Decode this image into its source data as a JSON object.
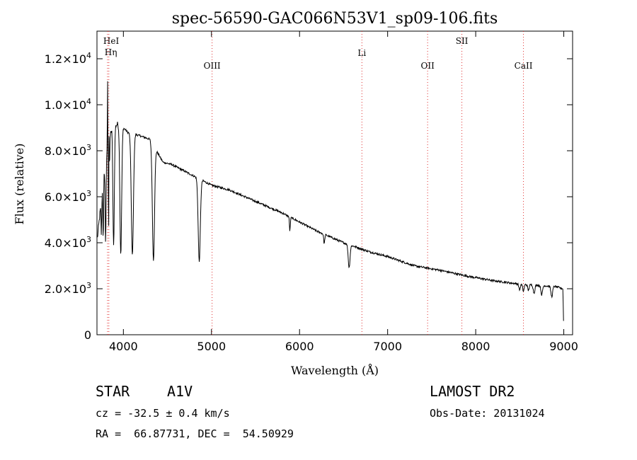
{
  "chart_data": {
    "type": "line",
    "title": "spec-56590-GAC066N53V1_sp09-106.fits",
    "xlabel": "Wavelength (Å)",
    "ylabel": "Flux (relative)",
    "xlim": [
      3700,
      9100
    ],
    "ylim": [
      0,
      13200
    ],
    "x_ticks": [
      4000,
      5000,
      6000,
      7000,
      8000,
      9000
    ],
    "x_tick_labels": [
      "4000",
      "5000",
      "6000",
      "7000",
      "8000",
      "9000"
    ],
    "y_ticks": [
      0,
      2000,
      4000,
      6000,
      8000,
      10000,
      12000
    ],
    "y_tick_labels": [
      {
        "mant": "0",
        "exp": ""
      },
      {
        "mant": "2.0×10",
        "exp": "3"
      },
      {
        "mant": "4.0×10",
        "exp": "3"
      },
      {
        "mant": "6.0×10",
        "exp": "3"
      },
      {
        "mant": "8.0×10",
        "exp": "3"
      },
      {
        "mant": "1.0×10",
        "exp": "4"
      },
      {
        "mant": "1.2×10",
        "exp": "4"
      }
    ],
    "lines": [
      {
        "label": "HeI",
        "wave": 3820
      },
      {
        "label": "Hη",
        "wave": 3835
      },
      {
        "label": "OIII",
        "wave": 5007
      },
      {
        "label": "Li",
        "wave": 6708
      },
      {
        "label": "OII",
        "wave": 7454
      },
      {
        "label": "SII",
        "wave": 7843
      },
      {
        "label": "CaII",
        "wave": 8542
      }
    ],
    "continuum": [
      [
        3705,
        4200
      ],
      [
        3740,
        5500
      ],
      [
        3780,
        7000
      ],
      [
        3820,
        8200
      ],
      [
        3870,
        9000
      ],
      [
        3950,
        9200
      ],
      [
        4050,
        8800
      ],
      [
        4150,
        8700
      ],
      [
        4300,
        8500
      ],
      [
        4450,
        7500
      ],
      [
        4550,
        7400
      ],
      [
        4700,
        7100
      ],
      [
        4850,
        6800
      ],
      [
        5000,
        6500
      ],
      [
        5200,
        6300
      ],
      [
        5500,
        5800
      ],
      [
        5800,
        5300
      ],
      [
        6000,
        4900
      ],
      [
        6200,
        4500
      ],
      [
        6500,
        4000
      ],
      [
        6800,
        3600
      ],
      [
        7000,
        3400
      ],
      [
        7300,
        3000
      ],
      [
        7600,
        2800
      ],
      [
        7900,
        2550
      ],
      [
        8200,
        2350
      ],
      [
        8500,
        2200
      ],
      [
        8700,
        2150
      ],
      [
        8900,
        2100
      ],
      [
        8990,
        2000
      ],
      [
        8995,
        1000
      ],
      [
        9000,
        0
      ]
    ],
    "absorption": [
      {
        "wave": 3750,
        "depth": 1500,
        "width": 4
      },
      {
        "wave": 3771,
        "depth": 2500,
        "width": 4
      },
      {
        "wave": 3798,
        "depth": 3500,
        "width": 5
      },
      {
        "wave": 3835,
        "depth": 4000,
        "width": 6
      },
      {
        "wave": 3889,
        "depth": 5200,
        "width": 8
      },
      {
        "wave": 3970,
        "depth": 5600,
        "width": 10
      },
      {
        "wave": 4102,
        "depth": 5300,
        "width": 12
      },
      {
        "wave": 4341,
        "depth": 5000,
        "width": 12
      },
      {
        "wave": 4861,
        "depth": 3600,
        "width": 12
      },
      {
        "wave": 5890,
        "depth": 600,
        "width": 5
      },
      {
        "wave": 6280,
        "depth": 400,
        "width": 6
      },
      {
        "wave": 6563,
        "depth": 1000,
        "width": 10
      },
      {
        "wave": 8498,
        "depth": 250,
        "width": 8
      },
      {
        "wave": 8542,
        "depth": 300,
        "width": 8
      },
      {
        "wave": 8598,
        "depth": 250,
        "width": 8
      },
      {
        "wave": 8662,
        "depth": 350,
        "width": 9
      },
      {
        "wave": 8750,
        "depth": 400,
        "width": 9
      },
      {
        "wave": 8863,
        "depth": 450,
        "width": 10
      }
    ],
    "emission": [
      {
        "wave": 3820,
        "height": 3500,
        "width": 2
      },
      {
        "wave": 3838,
        "height": 4500,
        "width": 2
      }
    ]
  },
  "info": {
    "object_class": "STAR",
    "subclass": "A1V",
    "survey": "LAMOST DR2",
    "redshift": "cz = -32.5 ± 0.4 km/s",
    "obs_date": "Obs-Date: 20131024",
    "coords": "RA =  66.87731, DEC =  54.50929"
  }
}
